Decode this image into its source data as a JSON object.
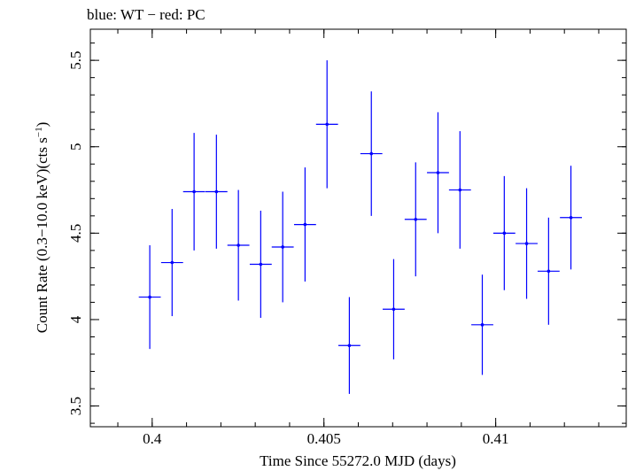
{
  "chart_data": {
    "type": "scatter",
    "title": "blue: WT − red: PC",
    "xlabel": "Time Since 55272.0 MJD (days)",
    "ylabel": "Count Rate (0.3−10.0 keV)(cts s",
    "ylabel_sup": "−1",
    "ylabel_close": ")",
    "xlim": [
      0.3982,
      0.4138
    ],
    "ylim": [
      3.38,
      5.68
    ],
    "x_ticks": [
      0.4,
      0.405,
      0.41
    ],
    "x_tick_labels": [
      "0.4",
      "0.405",
      "0.41"
    ],
    "y_ticks": [
      3.5,
      4,
      4.5,
      5,
      5.5
    ],
    "y_tick_labels": [
      "3.5",
      "4",
      "4.5",
      "5",
      "5.5"
    ],
    "x_minor_step": 0.001,
    "y_minor_step": 0.1,
    "grid": false,
    "series": [
      {
        "color": "#0000ff",
        "points": [
          {
            "x": 0.39993,
            "xerr": 0.00032,
            "y": 4.13,
            "yerr": 0.3
          },
          {
            "x": 0.40058,
            "xerr": 0.00032,
            "y": 4.33,
            "yerr": 0.31
          },
          {
            "x": 0.40122,
            "xerr": 0.00032,
            "y": 4.74,
            "yerr": 0.34
          },
          {
            "x": 0.40187,
            "xerr": 0.00032,
            "y": 4.74,
            "yerr": 0.33
          },
          {
            "x": 0.40251,
            "xerr": 0.00032,
            "y": 4.43,
            "yerr": 0.32
          },
          {
            "x": 0.40316,
            "xerr": 0.00032,
            "y": 4.32,
            "yerr": 0.31
          },
          {
            "x": 0.4038,
            "xerr": 0.00032,
            "y": 4.42,
            "yerr": 0.32
          },
          {
            "x": 0.40445,
            "xerr": 0.00032,
            "y": 4.55,
            "yerr": 0.33
          },
          {
            "x": 0.40509,
            "xerr": 0.00032,
            "y": 5.13,
            "yerr": 0.37
          },
          {
            "x": 0.40574,
            "xerr": 0.00032,
            "y": 3.85,
            "yerr": 0.28
          },
          {
            "x": 0.40638,
            "xerr": 0.00032,
            "y": 4.96,
            "yerr": 0.36
          },
          {
            "x": 0.40703,
            "xerr": 0.00032,
            "y": 4.06,
            "yerr": 0.29
          },
          {
            "x": 0.40767,
            "xerr": 0.00032,
            "y": 4.58,
            "yerr": 0.33
          },
          {
            "x": 0.40832,
            "xerr": 0.00032,
            "y": 4.85,
            "yerr": 0.35
          },
          {
            "x": 0.40896,
            "xerr": 0.00032,
            "y": 4.75,
            "yerr": 0.34
          },
          {
            "x": 0.40961,
            "xerr": 0.00032,
            "y": 3.97,
            "yerr": 0.29
          },
          {
            "x": 0.41025,
            "xerr": 0.00032,
            "y": 4.5,
            "yerr": 0.33
          },
          {
            "x": 0.4109,
            "xerr": 0.00032,
            "y": 4.44,
            "yerr": 0.32
          },
          {
            "x": 0.41154,
            "xerr": 0.00032,
            "y": 4.28,
            "yerr": 0.31
          },
          {
            "x": 0.41219,
            "xerr": 0.00032,
            "y": 4.59,
            "yerr": 0.3
          }
        ]
      }
    ]
  }
}
